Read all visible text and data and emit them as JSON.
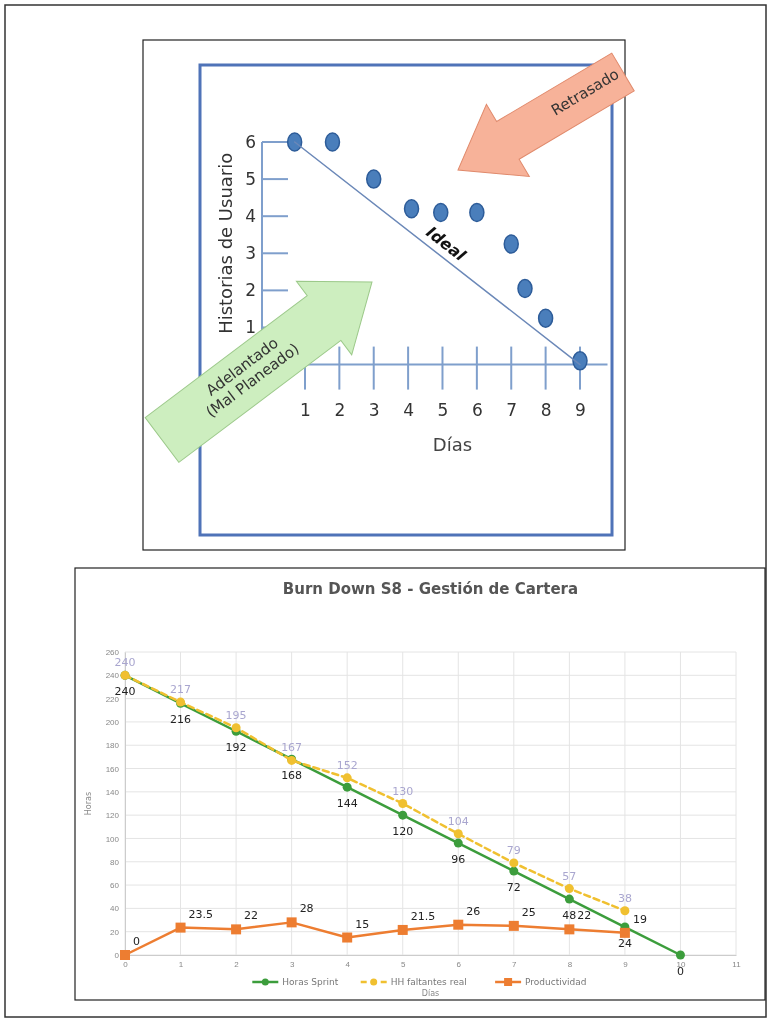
{
  "chart_data": [
    {
      "type": "scatter",
      "xlabel": "Días",
      "ylabel": "Historias de Usuario",
      "xlim": [
        -0.25,
        9.8
      ],
      "ylim": [
        -0.2,
        6
      ],
      "xticks": [
        1,
        2,
        3,
        4,
        5,
        6,
        7,
        8,
        9
      ],
      "yticks": [
        1,
        2,
        3,
        4,
        5,
        6
      ],
      "marker": "circle",
      "series": [
        {
          "type": "scatter",
          "color": "#4a7ebb",
          "x": [
            0.7,
            1.8,
            3,
            4.1,
            4.95,
            6,
            7,
            7.4,
            8,
            9
          ],
          "values": [
            6,
            6,
            5,
            4.2,
            4.1,
            4.1,
            3.25,
            2.05,
            1.25,
            0.1
          ]
        },
        {
          "type": "line",
          "color": "#6b88b8",
          "x": [
            0.7,
            9
          ],
          "values": [
            6,
            0
          ],
          "marker": "none"
        }
      ],
      "annotations": [
        "Retrasado",
        "Adelantado (Mal Planeado)",
        {
          "text": "Ideal",
          "x": 5,
          "y": 2.9
        }
      ]
    },
    {
      "type": "line",
      "title": "Burn Down S8 - Gestión de Cartera",
      "xlabel": "Días",
      "ylabel": "Horas",
      "xlim": [
        0,
        11
      ],
      "ylim": [
        0,
        260
      ],
      "xticks": [
        0,
        1,
        2,
        3,
        4,
        5,
        6,
        7,
        8,
        9,
        10,
        11
      ],
      "yticks": [
        0,
        20,
        40,
        60,
        80,
        100,
        120,
        140,
        160,
        180,
        200,
        220,
        240,
        260
      ],
      "grid": true,
      "legend": "bottom",
      "data_labels": true,
      "x": [
        0,
        1,
        2,
        3,
        4,
        5,
        6,
        7,
        8,
        9,
        10
      ],
      "series": [
        {
          "name": "Horas Sprint",
          "color": "#3c9d3c",
          "marker": "circle",
          "line_style": "solid",
          "values": [
            240,
            216,
            192,
            168,
            144,
            120,
            96,
            72,
            48,
            24,
            0
          ]
        },
        {
          "name": "HH faltantes real",
          "color": "#f0c030",
          "marker": "circle",
          "line_style": "dashed",
          "values": [
            240,
            217,
            195,
            167,
            152,
            130,
            104,
            79,
            57,
            38,
            null
          ]
        },
        {
          "name": "Productividad",
          "color": "#ed7d31",
          "marker": "square",
          "line_style": "solid",
          "values": [
            0,
            23.5,
            22,
            28,
            15,
            21.5,
            26,
            25,
            22,
            19,
            null
          ]
        }
      ]
    }
  ]
}
